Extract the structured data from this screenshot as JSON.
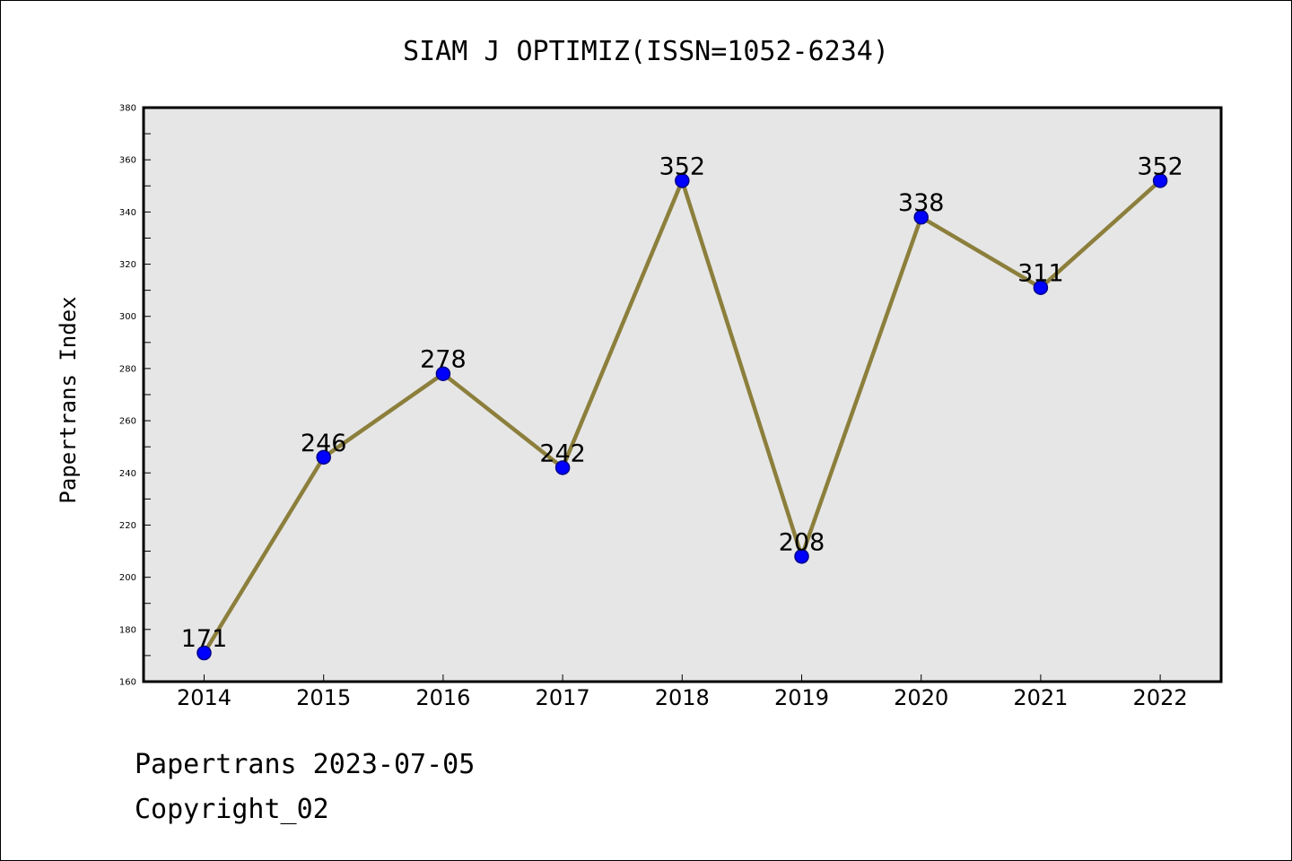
{
  "chart_data": {
    "type": "line",
    "title": "SIAM J OPTIMIZ(ISSN=1052-6234)",
    "xlabel": "",
    "ylabel": "Papertrans Index",
    "categories": [
      "2014",
      "2015",
      "2016",
      "2017",
      "2018",
      "2019",
      "2020",
      "2021",
      "2022"
    ],
    "series": [
      {
        "values": [
          171,
          246,
          278,
          242,
          352,
          208,
          338,
          311,
          352
        ]
      }
    ],
    "data_labels": [
      "171",
      "246",
      "278",
      "242",
      "352",
      "208",
      "338",
      "311",
      "352"
    ],
    "ylim": [
      160,
      380
    ],
    "y_ticks": [
      "160",
      "180",
      "200",
      "220",
      "240",
      "260",
      "280",
      "300",
      "320",
      "340",
      "360",
      "380"
    ],
    "grid": false,
    "legend": "none",
    "colors": {
      "line": "#8c7f3c",
      "marker_fill": "#0000ff",
      "marker_edge": "#00008b",
      "plot_background": "#e6e6e6"
    }
  },
  "footer": {
    "date_text": "Papertrans 2023-07-05",
    "copyright_text": "Copyright_02"
  }
}
